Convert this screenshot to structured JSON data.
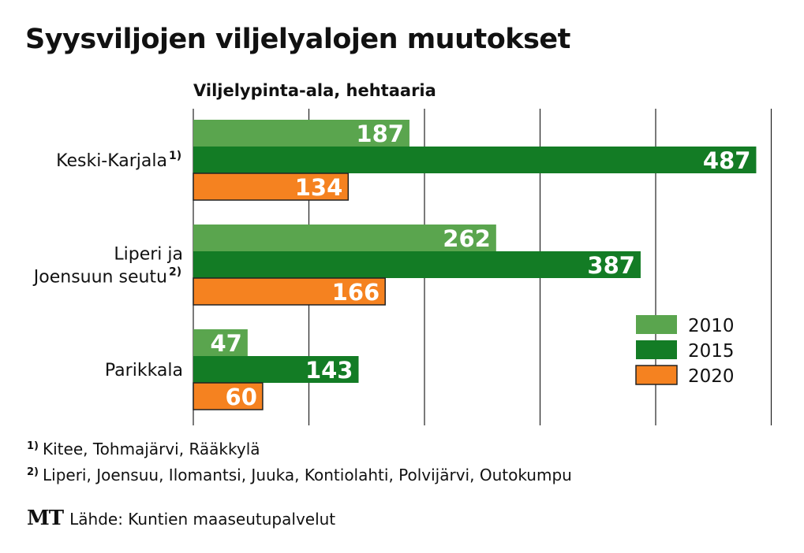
{
  "title": "Syysviljojen viljelyalojen muutokset",
  "chart_data": {
    "type": "bar",
    "orientation": "horizontal",
    "subtitle": "Viljelypinta-ala, hehtaaria",
    "categories": [
      {
        "lines": [
          "Keski-Karjala"
        ],
        "note": "1)"
      },
      {
        "lines": [
          "Liperi ja",
          "Joensuun seutu"
        ],
        "note": "2)"
      },
      {
        "lines": [
          "Parikkala"
        ],
        "note": ""
      }
    ],
    "series": [
      {
        "name": "2010",
        "color": "#5aa54e",
        "values": [
          187,
          262,
          47
        ]
      },
      {
        "name": "2015",
        "color": "#137c25",
        "values": [
          487,
          387,
          143
        ]
      },
      {
        "name": "2020",
        "color": "#f58220",
        "values": [
          134,
          166,
          60
        ]
      }
    ],
    "xlim": [
      0,
      500
    ],
    "grid_step": 100,
    "grid": true,
    "legend_position": "right"
  },
  "footnotes": [
    {
      "mark": "1)",
      "text": "Kitee, Tohmajärvi, Rääkkylä"
    },
    {
      "mark": "2)",
      "text": "Liperi, Joensuu, Ilomantsi, Juuka, Kontiolahti, Polvijärvi, Outokumpu"
    }
  ],
  "logo": "MT",
  "source": "Lähde: Kuntien maaseutupalvelut"
}
